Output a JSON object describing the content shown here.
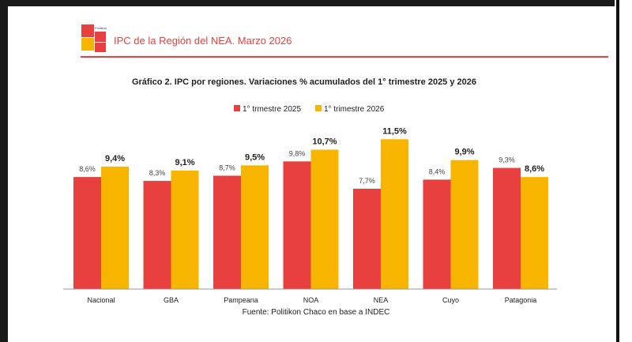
{
  "header": {
    "logo_text": "Politikon",
    "title": "IPC de la Región del NEA. Marzo 2026"
  },
  "chart_data": {
    "type": "bar",
    "title": "Gráfico 2. IPC por regiones. Variaciones % acumulados del 1° trimestre 2025 y 2026",
    "categories": [
      "Nacional",
      "GBA",
      "Pampeana",
      "NOA",
      "NEA",
      "Cuyo",
      "Patagonia"
    ],
    "series": [
      {
        "name": "1° trmestre 2025",
        "color": "#e8403e",
        "values": [
          8.6,
          8.3,
          8.7,
          9.8,
          7.7,
          8.4,
          9.3
        ],
        "labels": [
          "8,6%",
          "8,3%",
          "8,7%",
          "9,8%",
          "7,7%",
          "8,4%",
          "9,3%"
        ]
      },
      {
        "name": "1° trimestre 2026",
        "color": "#f7b500",
        "values": [
          9.4,
          9.1,
          9.5,
          10.7,
          11.5,
          9.9,
          8.6
        ],
        "labels": [
          "9,4%",
          "9,1%",
          "9,5%",
          "10,7%",
          "11,5%",
          "9,9%",
          "8,6%"
        ]
      }
    ],
    "ylim": [
      0,
      12
    ],
    "grid": false,
    "legend": "top-center",
    "source": "Fuente: Politikon Chaco en base a INDEC"
  }
}
